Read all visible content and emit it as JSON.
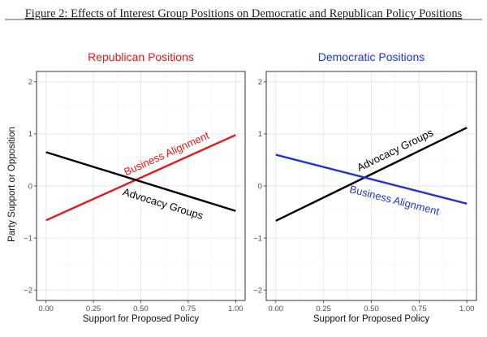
{
  "figure_title": "Figure 2: Effects of Interest Group Positions on Democratic and Republican Policy Positions",
  "y_axis_label": "Party Support or Opposition",
  "chart_data": [
    {
      "type": "line",
      "title": "Republican Positions",
      "title_color": "#e31a1c",
      "xlabel": "Support for Proposed Policy",
      "ylabel": "Party Support or Opposition",
      "xlim": [
        -0.05,
        1.05
      ],
      "ylim": [
        -2.2,
        2.2
      ],
      "xticks": [
        0.0,
        0.25,
        0.5,
        0.75,
        1.0
      ],
      "xtick_labels": [
        "0.00",
        "0.25",
        "0.50",
        "0.75",
        "1.00"
      ],
      "yticks": [
        -2,
        -1,
        0,
        1,
        2
      ],
      "ytick_labels": [
        "−2",
        "−1",
        "0",
        "1",
        "2"
      ],
      "grid": true,
      "series": [
        {
          "name": "Business Alignment",
          "color": "#e31a1c",
          "x": [
            0,
            1
          ],
          "y": [
            -0.66,
            0.98
          ]
        },
        {
          "name": "Advocacy Groups",
          "color": "#000000",
          "x": [
            0,
            1
          ],
          "y": [
            0.65,
            -0.48
          ]
        }
      ]
    },
    {
      "type": "line",
      "title": "Democratic Positions",
      "title_color": "#1f35d1",
      "xlabel": "Support for Proposed Policy",
      "ylabel": "",
      "xlim": [
        -0.05,
        1.05
      ],
      "ylim": [
        -2.2,
        2.2
      ],
      "xticks": [
        0.0,
        0.25,
        0.5,
        0.75,
        1.0
      ],
      "xtick_labels": [
        "0.00",
        "0.25",
        "0.50",
        "0.75",
        "1.00"
      ],
      "yticks": [
        -2,
        -1,
        0,
        1,
        2
      ],
      "ytick_labels": [
        "−2",
        "−1",
        "0",
        "1",
        "2"
      ],
      "grid": true,
      "series": [
        {
          "name": "Advocacy Groups",
          "color": "#000000",
          "x": [
            0,
            1
          ],
          "y": [
            -0.67,
            1.12
          ]
        },
        {
          "name": "Business Alignment",
          "color": "#1f35d1",
          "x": [
            0,
            1
          ],
          "y": [
            0.6,
            -0.34
          ]
        }
      ]
    }
  ]
}
